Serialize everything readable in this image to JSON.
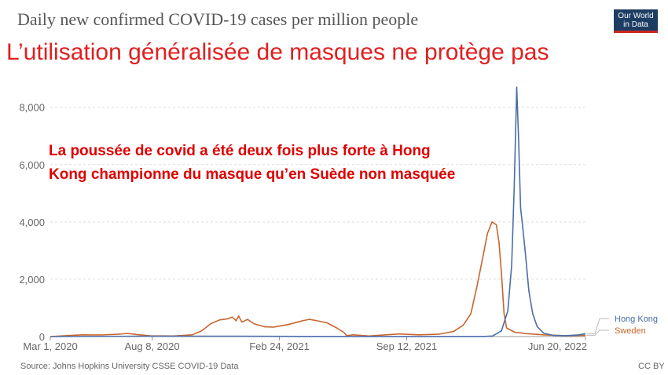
{
  "header": {
    "title": "Daily new confirmed COVID-19 cases per million people",
    "logo_line1": "Our World",
    "logo_line2": "in Data"
  },
  "headline": "L’utilisation généralisée de masques ne protège pas",
  "annotation": {
    "line1": "La poussée de covid a été deux fois plus forte à Hong",
    "line2": "Kong championne du masque qu’en Suède non masquée"
  },
  "footer": {
    "source": "Source: Johns Hopkins University CSSE COVID-19 Data",
    "license": "CC BY"
  },
  "colors": {
    "hong_kong": "#4a6ea8",
    "sweden": "#c8652d"
  },
  "chart_data": {
    "type": "line",
    "title": "Daily new confirmed COVID-19 cases per million people",
    "xlim": [
      "2020-03-01",
      "2022-06-20"
    ],
    "ylim": [
      0,
      8000
    ],
    "y_ticks": [
      0,
      2000,
      4000,
      6000,
      8000
    ],
    "y_tick_labels": [
      "0",
      "2,000",
      "4,000",
      "6,000",
      "8,000"
    ],
    "x_ticks": [
      "2020-03-01",
      "2020-08-08",
      "2021-02-24",
      "2021-09-12",
      "2022-06-20"
    ],
    "x_tick_labels": [
      "Mar 1, 2020",
      "Aug 8, 2020",
      "Feb 24, 2021",
      "Sep 12, 2021",
      "Jun 20, 2022"
    ],
    "grid": true,
    "legend": "right",
    "series": [
      {
        "name": "Hong Kong",
        "color": "#4a6ea8",
        "points": [
          [
            "2020-03-01",
            0
          ],
          [
            "2020-08-01",
            15
          ],
          [
            "2020-12-15",
            12
          ],
          [
            "2021-06-01",
            2
          ],
          [
            "2022-01-10",
            3
          ],
          [
            "2022-01-25",
            20
          ],
          [
            "2022-02-08",
            200
          ],
          [
            "2022-02-18",
            900
          ],
          [
            "2022-02-24",
            2500
          ],
          [
            "2022-02-28",
            5200
          ],
          [
            "2022-03-04",
            8700
          ],
          [
            "2022-03-07",
            6800
          ],
          [
            "2022-03-10",
            4500
          ],
          [
            "2022-03-14",
            3700
          ],
          [
            "2022-03-18",
            2800
          ],
          [
            "2022-03-23",
            1600
          ],
          [
            "2022-03-29",
            800
          ],
          [
            "2022-04-05",
            350
          ],
          [
            "2022-04-15",
            120
          ],
          [
            "2022-04-30",
            40
          ],
          [
            "2022-05-20",
            30
          ],
          [
            "2022-06-10",
            60
          ],
          [
            "2022-06-20",
            100
          ]
        ]
      },
      {
        "name": "Sweden",
        "color": "#c8652d",
        "points": [
          [
            "2020-03-01",
            0
          ],
          [
            "2020-03-25",
            30
          ],
          [
            "2020-04-20",
            60
          ],
          [
            "2020-05-20",
            55
          ],
          [
            "2020-06-15",
            80
          ],
          [
            "2020-06-30",
            110
          ],
          [
            "2020-07-15",
            70
          ],
          [
            "2020-08-05",
            25
          ],
          [
            "2020-09-10",
            20
          ],
          [
            "2020-10-10",
            60
          ],
          [
            "2020-10-25",
            200
          ],
          [
            "2020-11-08",
            450
          ],
          [
            "2020-11-22",
            580
          ],
          [
            "2020-12-05",
            620
          ],
          [
            "2020-12-12",
            680
          ],
          [
            "2020-12-18",
            550
          ],
          [
            "2020-12-22",
            720
          ],
          [
            "2020-12-27",
            500
          ],
          [
            "2021-01-05",
            600
          ],
          [
            "2021-01-15",
            450
          ],
          [
            "2021-02-01",
            340
          ],
          [
            "2021-02-15",
            330
          ],
          [
            "2021-03-10",
            420
          ],
          [
            "2021-04-01",
            550
          ],
          [
            "2021-04-12",
            600
          ],
          [
            "2021-04-22",
            560
          ],
          [
            "2021-05-10",
            480
          ],
          [
            "2021-05-25",
            300
          ],
          [
            "2021-06-05",
            150
          ],
          [
            "2021-06-10",
            30
          ],
          [
            "2021-06-20",
            60
          ],
          [
            "2021-07-15",
            20
          ],
          [
            "2021-08-10",
            60
          ],
          [
            "2021-09-01",
            90
          ],
          [
            "2021-10-01",
            60
          ],
          [
            "2021-11-01",
            80
          ],
          [
            "2021-11-25",
            180
          ],
          [
            "2021-12-10",
            400
          ],
          [
            "2021-12-22",
            800
          ],
          [
            "2022-01-01",
            1800
          ],
          [
            "2022-01-10",
            2800
          ],
          [
            "2022-01-17",
            3600
          ],
          [
            "2022-01-24",
            4000
          ],
          [
            "2022-01-31",
            3900
          ],
          [
            "2022-02-04",
            3300
          ],
          [
            "2022-02-08",
            2200
          ],
          [
            "2022-02-12",
            800
          ],
          [
            "2022-02-16",
            300
          ],
          [
            "2022-03-01",
            150
          ],
          [
            "2022-03-20",
            100
          ],
          [
            "2022-04-15",
            60
          ],
          [
            "2022-05-20",
            30
          ],
          [
            "2022-06-20",
            45
          ]
        ]
      }
    ]
  }
}
